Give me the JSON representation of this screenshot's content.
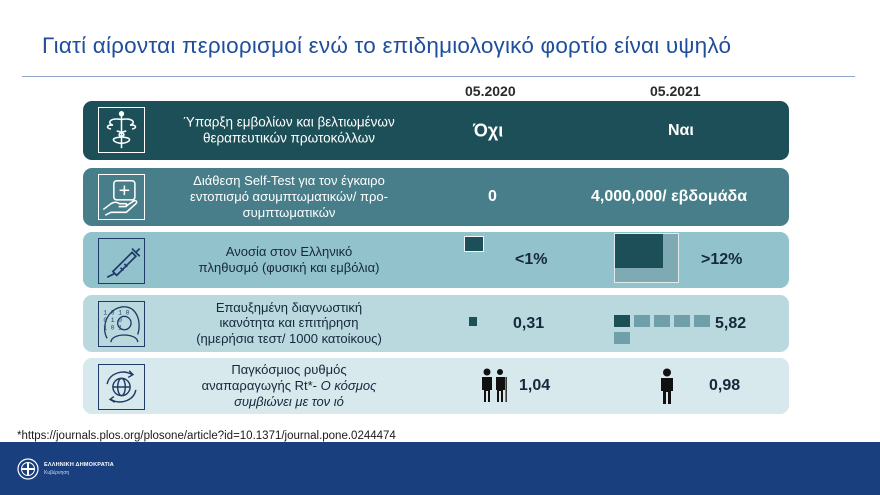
{
  "title": "Γιατί αίρονται περιορισμοί ενώ το επιδημιολογικό φορτίο είναι υψηλό",
  "columns": [
    "05.2020",
    "05.2021"
  ],
  "rows": [
    {
      "icon": "caduceus-icon",
      "label_1": "Ύπαρξη εμβολίων και βελτιωμένων",
      "label_2": "θεραπευτικών πρωτοκόλλων",
      "label_3": "",
      "value_2020": "Όχι",
      "value_2021": "Ναι"
    },
    {
      "icon": "self-test-hand-icon",
      "label_1": "Διάθεση Self-Test για τον έγκαιρο",
      "label_2": "εντοπισμό ασυμπτωματικών/ προ-",
      "label_3": "συμπτωματικών",
      "value_2020": "0",
      "value_2021": "4,000,000/ εβδομάδα"
    },
    {
      "icon": "syringe-icon",
      "label_1": "Ανοσία στον Ελληνικό",
      "label_2": "πληθυσμό (φυσική και εμβόλια)",
      "label_3": "",
      "value_2020": "<1%",
      "value_2021": ">12%",
      "fraction_2020": 0.01,
      "fraction_2021": 0.12
    },
    {
      "icon": "data-head-icon",
      "label_1": "Επαυξημένη διαγνωστική",
      "label_2": "ικανότητα και επιτήρηση",
      "label_3": "(ημερήσια τεστ/ 1000 κατοίκους)",
      "value_2020": "0,31",
      "value_2021": "5,82"
    },
    {
      "icon": "globe-cycle-icon",
      "label_1": "Παγκόσμιος ρυθμός",
      "label_2": "αναπαραγωγής Rt*- ",
      "label_2_italic": "Ο κόσμος",
      "label_3": "συμβιώνει με τον ιό",
      "value_2020": "1,04",
      "value_2021": "0,98"
    }
  ],
  "footnote": "*https://journals.plos.org/plosone/article?id=10.1371/journal.pone.0244474",
  "footer": {
    "org_name": "ΕΛΛΗΝΙΚΗ ΔΗΜΟΚΡΑΤΙΑ",
    "org_sub": "Κυβέρνηση"
  },
  "colors": {
    "row1": "#1c4f57",
    "row2": "#487e89",
    "row3": "#92c2cc",
    "row4": "#b9d9df",
    "row5": "#d7e9ed",
    "footer": "#1a3f7f",
    "title": "#1f4e9a"
  }
}
